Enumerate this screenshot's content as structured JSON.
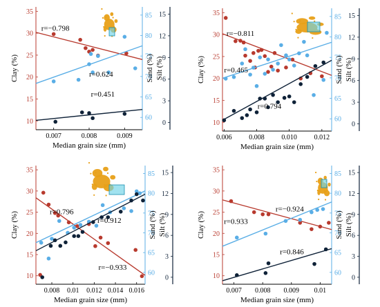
{
  "colors": {
    "clay": "#b83a2e",
    "silt": "#5aaee6",
    "sand": "#0f2238",
    "axis_black": "#000000",
    "map_land": "#e8a018",
    "map_inset_fill": "#6fd3e6"
  },
  "labels": {
    "xlabel": "Median grain size (mm)",
    "clay_axis": "Clay (%)",
    "silt_axis": "Silt (%)",
    "sand_axis": "Sand (%)"
  },
  "chart_data": [
    {
      "type": "scatter",
      "panel": "top-left",
      "xlim": [
        0.0065,
        0.0095
      ],
      "xticks": [
        "0.007",
        "0.008",
        "0.009"
      ],
      "ylim_clay": [
        8,
        36
      ],
      "yticks_clay": [
        "10",
        "15",
        "20",
        "25",
        "30",
        "35"
      ],
      "ylim_silt": [
        57,
        87
      ],
      "yticks_silt": [
        "60",
        "65",
        "70",
        "75",
        "80",
        "85"
      ],
      "ylim_sand": [
        -1,
        16
      ],
      "yticks_sand": [
        "0",
        "3",
        "6",
        "9",
        "12",
        "15"
      ],
      "annotations": [
        {
          "text": "r=−0.798",
          "series": "clay",
          "x": 0.00665,
          "y": 30.6
        },
        {
          "text": "r=0.624",
          "series": "silt",
          "x": 0.008,
          "y": 70.0
        },
        {
          "text": "r=0.451",
          "series": "sand",
          "x": 0.00805,
          "y": 3.6
        }
      ],
      "series": [
        {
          "key": "clay",
          "x": [
            0.007,
            0.00775,
            0.0079,
            0.008,
            0.0081,
            0.00825,
            0.00905
          ],
          "y": [
            29.8,
            28.5,
            26.6,
            25.8,
            26.2,
            24.9,
            25.4
          ],
          "fit": [
            [
              0.0065,
              30.2
            ],
            [
              0.0095,
              24.0
            ]
          ]
        },
        {
          "key": "silt",
          "x": [
            0.007,
            0.0077,
            0.008,
            0.00805,
            0.0081,
            0.00825,
            0.00855,
            0.009,
            0.0093
          ],
          "y": [
            68.8,
            69.2,
            73.0,
            75.5,
            71.0,
            75.0,
            71.0,
            79.7,
            72.0
          ],
          "fit": [
            [
              0.0065,
              68.3
            ],
            [
              0.0095,
              77.5
            ]
          ]
        },
        {
          "key": "sand",
          "x": [
            0.00705,
            0.0078,
            0.008,
            0.0081,
            0.009
          ],
          "y": [
            0.1,
            1.4,
            1.3,
            0.6,
            1.2
          ],
          "fit": [
            [
              0.0065,
              0.3
            ],
            [
              0.0095,
              1.8
            ]
          ]
        }
      ]
    },
    {
      "type": "scatter",
      "panel": "top-right",
      "xlim": [
        0.0059,
        0.0126
      ],
      "xticks": [
        "0.006",
        "0.008",
        "0.010",
        "0.012"
      ],
      "ylim_clay": [
        8,
        36
      ],
      "yticks_clay": [
        "10",
        "15",
        "20",
        "25",
        "30",
        "35"
      ],
      "ylim_silt": [
        57,
        87
      ],
      "yticks_silt": [
        "60",
        "65",
        "70",
        "75",
        "80",
        "85"
      ],
      "ylim_sand": [
        -1,
        16
      ],
      "yticks_sand": [
        "0",
        "3",
        "6",
        "9",
        "12",
        "15"
      ],
      "annotations": [
        {
          "text": "r=−0.811",
          "series": "clay",
          "x": 0.00615,
          "y": 29.7
        },
        {
          "text": "r=0.465",
          "series": "silt",
          "x": 0.006,
          "y": 71.3
        },
        {
          "text": "r=0.794",
          "series": "sand",
          "x": 0.00805,
          "y": 2.1
        }
      ],
      "series": [
        {
          "key": "clay",
          "x": [
            0.0061,
            0.0067,
            0.007,
            0.0072,
            0.0073,
            0.0076,
            0.0078,
            0.0079,
            0.0081,
            0.0083,
            0.0085,
            0.0087,
            0.0089,
            0.0091,
            0.0093,
            0.0098,
            0.0102,
            0.0107,
            0.0113,
            0.012
          ],
          "y": [
            33.8,
            28.5,
            28.6,
            28.2,
            25.2,
            24.0,
            25.8,
            22.5,
            26.3,
            26.5,
            25.1,
            21.5,
            22.7,
            25.8,
            21.8,
            22.5,
            24.3,
            20.0,
            21.2,
            20.5
          ],
          "fit": [
            [
              0.0059,
              30.2
            ],
            [
              0.0126,
              20.7
            ]
          ]
        },
        {
          "key": "silt",
          "x": [
            0.0061,
            0.0066,
            0.0071,
            0.0073,
            0.0076,
            0.0078,
            0.008,
            0.0082,
            0.0085,
            0.0087,
            0.009,
            0.0093,
            0.0095,
            0.0098,
            0.01,
            0.0103,
            0.0106,
            0.0109,
            0.0111,
            0.0115,
            0.0121,
            0.0123
          ],
          "y": [
            69.8,
            70.2,
            73.5,
            77.0,
            70.8,
            72.5,
            68.0,
            75.0,
            71.0,
            74.5,
            72.0,
            73.5,
            78.0,
            75.5,
            74.5,
            73.0,
            76.0,
            78.8,
            75.5,
            65.8,
            69.5,
            81.0
          ],
          "fit": [
            [
              0.0059,
              69.9
            ],
            [
              0.0126,
              78.7
            ]
          ]
        },
        {
          "key": "sand",
          "x": [
            0.006,
            0.0066,
            0.0071,
            0.0074,
            0.0076,
            0.008,
            0.0082,
            0.0085,
            0.0087,
            0.009,
            0.0093,
            0.0097,
            0.01,
            0.0103,
            0.0107,
            0.0111,
            0.0116,
            0.0121
          ],
          "y": [
            0.5,
            1.8,
            0.8,
            1.2,
            2.0,
            1.6,
            3.5,
            3.5,
            2.3,
            4.0,
            3.0,
            3.6,
            3.8,
            3.0,
            5.5,
            6.5,
            8.0,
            8.5
          ],
          "fit": [
            [
              0.0059,
              0.5
            ],
            [
              0.0126,
              8.8
            ]
          ]
        }
      ]
    },
    {
      "type": "scatter",
      "panel": "bottom-left",
      "xlim": [
        0.0065,
        0.0168
      ],
      "xticks": [
        "0.008",
        "0.01",
        "0.012",
        "0.014",
        "0.016"
      ],
      "ylim_clay": [
        8,
        36
      ],
      "yticks_clay": [
        "10",
        "15",
        "20",
        "25",
        "30",
        "35"
      ],
      "ylim_silt": [
        57,
        87
      ],
      "yticks_silt": [
        "60",
        "65",
        "70",
        "75",
        "80",
        "85"
      ],
      "ylim_sand": [
        -1,
        16
      ],
      "yticks_sand": [
        "0",
        "3",
        "6",
        "9",
        "12",
        "15"
      ],
      "annotations": [
        {
          "text": "r=0.796",
          "series": "silt",
          "x": 0.0078,
          "y": 74.7
        },
        {
          "text": "r=0.912",
          "series": "sand",
          "x": 0.0123,
          "y": 7.8
        },
        {
          "text": "r=−0.933",
          "series": "clay",
          "x": 0.0124,
          "y": 11.4
        }
      ],
      "series": [
        {
          "key": "clay",
          "x": [
            0.0069,
            0.0072,
            0.0077,
            0.0083,
            0.0086,
            0.0096,
            0.0104,
            0.0115,
            0.0121,
            0.0126,
            0.0133,
            0.0159,
            0.0165
          ],
          "y": [
            10.2,
            29.6,
            26.8,
            24.8,
            24.2,
            22.6,
            21.7,
            22.2,
            17.0,
            19.0,
            17.7,
            16.1,
            9.9
          ],
          "fit": [
            [
              0.0065,
              28.4
            ],
            [
              0.0168,
              10.1
            ]
          ]
        },
        {
          "key": "silt",
          "x": [
            0.007,
            0.0077,
            0.008,
            0.0087,
            0.0095,
            0.0101,
            0.0107,
            0.0115,
            0.0122,
            0.0128,
            0.0135,
            0.0148,
            0.0155,
            0.016,
            0.0163
          ],
          "y": [
            67.5,
            63.5,
            68.5,
            73.0,
            70.0,
            71.3,
            72.0,
            72.8,
            71.8,
            77.0,
            75.2,
            76.2,
            75.5,
            80.5,
            80.0
          ],
          "fit": [
            [
              0.0065,
              67.5
            ],
            [
              0.0168,
              80.6
            ]
          ]
        },
        {
          "key": "sand",
          "x": [
            0.0071,
            0.0079,
            0.0083,
            0.0088,
            0.0093,
            0.0101,
            0.0105,
            0.0109,
            0.0119,
            0.0127,
            0.0133,
            0.0145,
            0.0155,
            0.016,
            0.0166
          ],
          "y": [
            0.0,
            4.5,
            5.3,
            4.5,
            5.0,
            5.9,
            5.9,
            6.5,
            7.9,
            8.6,
            8.6,
            9.4,
            11.0,
            11.9,
            11.0
          ],
          "fit": [
            [
              0.0065,
              3.8
            ],
            [
              0.0168,
              11.9
            ]
          ]
        }
      ]
    },
    {
      "type": "scatter",
      "panel": "bottom-right",
      "xlim": [
        0.0066,
        0.0104
      ],
      "xticks": [
        "0.007",
        "0.008",
        "0.009",
        "0.01"
      ],
      "ylim_clay": [
        8,
        36
      ],
      "yticks_clay": [
        "10",
        "15",
        "20",
        "25",
        "30",
        "35"
      ],
      "ylim_silt": [
        57,
        87
      ],
      "yticks_silt": [
        "60",
        "65",
        "70",
        "75",
        "80",
        "85"
      ],
      "ylim_sand": [
        -1,
        16
      ],
      "yticks_sand": [
        "0",
        "3",
        "6",
        "9",
        "12",
        "15"
      ],
      "annotations": [
        {
          "text": "r=−0.924",
          "series": "clay",
          "x": 0.00845,
          "y": 25.2
        },
        {
          "text": "r=0.933",
          "series": "silt",
          "x": 0.00665,
          "y": 72.3
        },
        {
          "text": "r=0.846",
          "series": "sand",
          "x": 0.0086,
          "y": 3.3
        }
      ],
      "series": [
        {
          "key": "clay",
          "x": [
            0.0069,
            0.0077,
            0.008,
            0.0082,
            0.0093,
            0.0097,
            0.01,
            0.0103
          ],
          "y": [
            27.6,
            25.0,
            24.5,
            24.5,
            22.5,
            21.0,
            21.6,
            22.5
          ],
          "fit": [
            [
              0.0066,
              27.9
            ],
            [
              0.0104,
              20.9
            ]
          ]
        },
        {
          "key": "silt",
          "x": [
            0.0071,
            0.0081,
            0.0088,
            0.0093,
            0.0097,
            0.0099,
            0.0101
          ],
          "y": [
            68.8,
            69.8,
            73.0,
            73.3,
            75.2,
            75.8,
            76.0
          ],
          "fit": [
            [
              0.0066,
              66.6
            ],
            [
              0.0104,
              77.8
            ]
          ]
        },
        {
          "key": "sand",
          "x": [
            0.0071,
            0.0081,
            0.0082,
            0.0098,
            0.0102
          ],
          "y": [
            0.3,
            0.6,
            2.0,
            1.9,
            4.0
          ],
          "fit": [
            [
              0.0066,
              -0.5
            ],
            [
              0.0104,
              4.1
            ]
          ]
        }
      ]
    }
  ]
}
